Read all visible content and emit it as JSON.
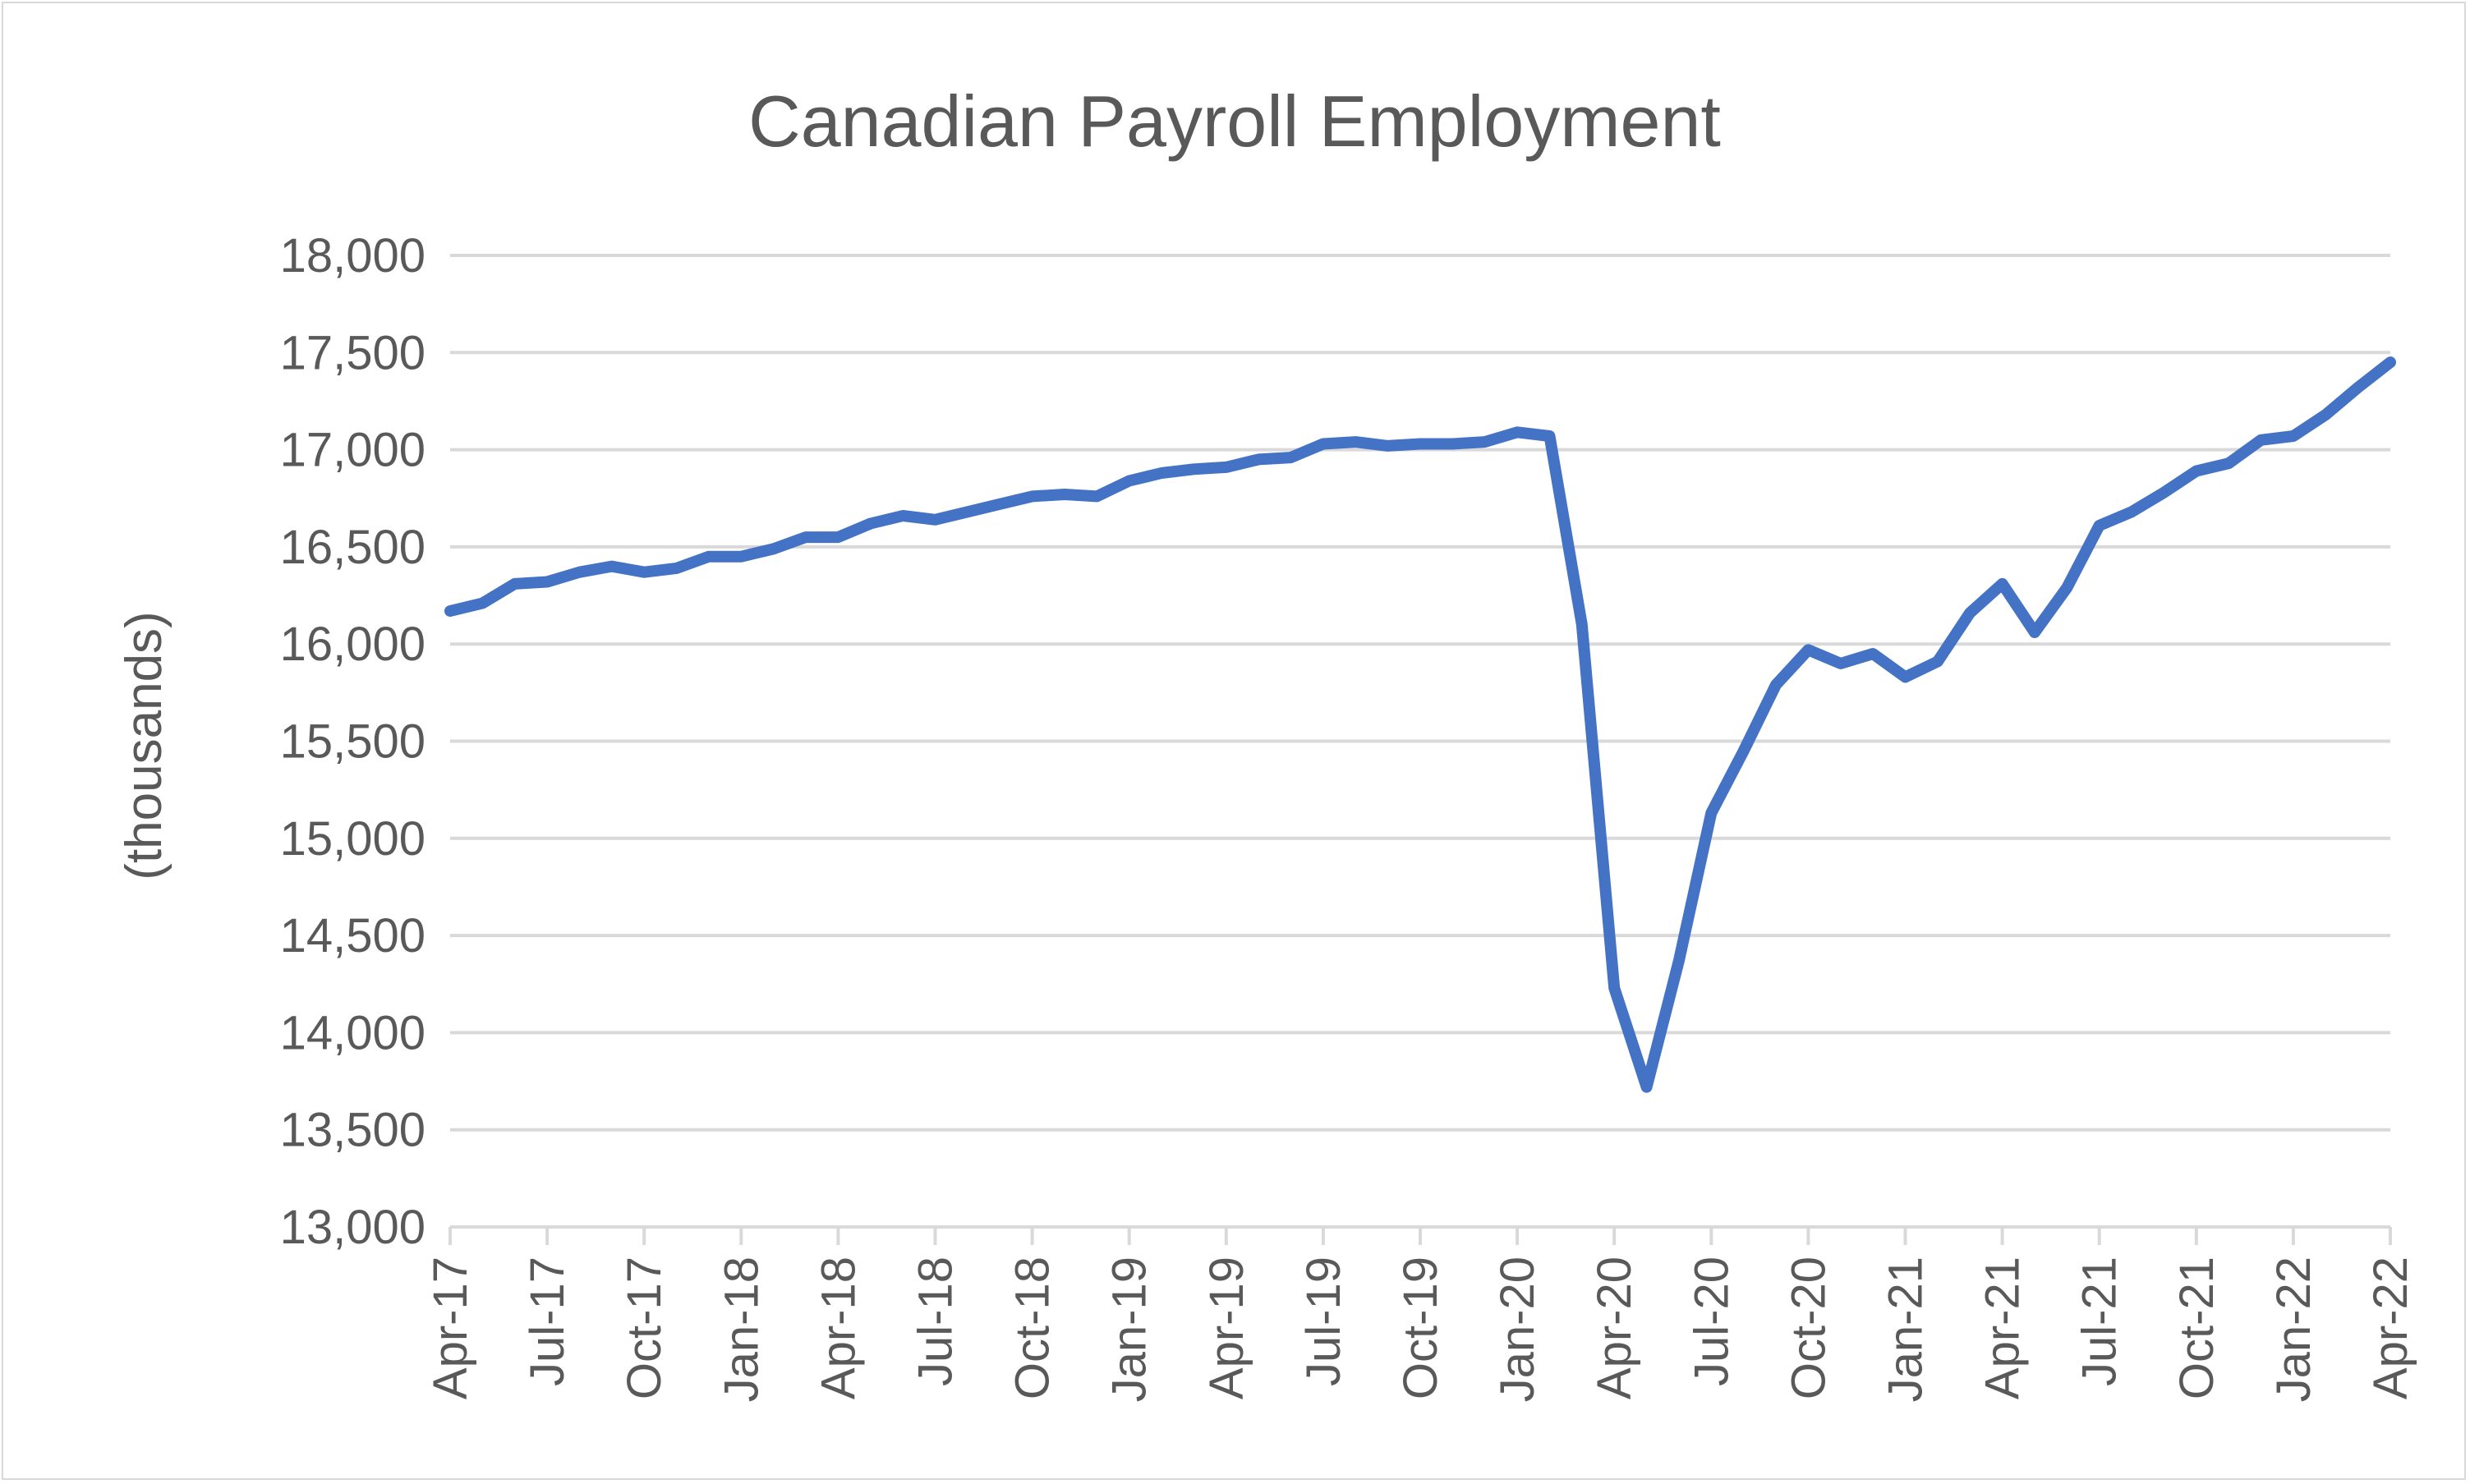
{
  "chart_data": {
    "type": "line",
    "title": "Canadian Payroll Employment",
    "xlabel": "",
    "ylabel": "(thousands)",
    "ylim": [
      13000,
      18000
    ],
    "yticks": [
      13000,
      13500,
      14000,
      14500,
      15000,
      15500,
      16000,
      16500,
      17000,
      17500,
      18000
    ],
    "ytick_labels": [
      "13,000",
      "13,500",
      "14,000",
      "14,500",
      "15,000",
      "15,500",
      "16,000",
      "16,500",
      "17,000",
      "17,500",
      "18,000"
    ],
    "x": [
      "Apr-17",
      "May-17",
      "Jun-17",
      "Jul-17",
      "Aug-17",
      "Sep-17",
      "Oct-17",
      "Nov-17",
      "Dec-17",
      "Jan-18",
      "Feb-18",
      "Mar-18",
      "Apr-18",
      "May-18",
      "Jun-18",
      "Jul-18",
      "Aug-18",
      "Sep-18",
      "Oct-18",
      "Nov-18",
      "Dec-18",
      "Jan-19",
      "Feb-19",
      "Mar-19",
      "Apr-19",
      "May-19",
      "Jun-19",
      "Jul-19",
      "Aug-19",
      "Sep-19",
      "Oct-19",
      "Nov-19",
      "Dec-19",
      "Jan-20",
      "Feb-20",
      "Mar-20",
      "Apr-20",
      "May-20",
      "Jun-20",
      "Jul-20",
      "Aug-20",
      "Sep-20",
      "Oct-20",
      "Nov-20",
      "Dec-20",
      "Jan-21",
      "Feb-21",
      "Mar-21",
      "Apr-21",
      "May-21",
      "Jun-21",
      "Jul-21",
      "Aug-21",
      "Sep-21",
      "Oct-21",
      "Nov-21",
      "Dec-21",
      "Jan-22",
      "Feb-22",
      "Mar-22",
      "Apr-22"
    ],
    "xtick_labels": [
      "Apr-17",
      "Jul-17",
      "Oct-17",
      "Jan-18",
      "Apr-18",
      "Jul-18",
      "Oct-18",
      "Jan-19",
      "Apr-19",
      "Jul-19",
      "Oct-19",
      "Jan-20",
      "Apr-20",
      "Jul-20",
      "Oct-20",
      "Jan-21",
      "Apr-21",
      "Jul-21",
      "Oct-21",
      "Jan-22",
      "Apr-22"
    ],
    "series": [
      {
        "color": "#4472c4",
        "values": [
          16170,
          16210,
          16310,
          16320,
          16370,
          16400,
          16370,
          16390,
          16450,
          16450,
          16490,
          16550,
          16550,
          16620,
          16660,
          16640,
          16680,
          16720,
          16760,
          16770,
          16760,
          16840,
          16880,
          16900,
          16910,
          16950,
          16960,
          17030,
          17040,
          17020,
          17030,
          17030,
          17040,
          17090,
          17070,
          16100,
          14230,
          13720,
          14370,
          15130,
          15450,
          15790,
          15970,
          15900,
          15950,
          15830,
          15910,
          16160,
          16310,
          16060,
          16290,
          16610,
          16680,
          16780,
          16890,
          16930,
          17050,
          17070,
          17180,
          17320,
          17450
        ]
      }
    ],
    "grid": true,
    "legend": "none"
  }
}
